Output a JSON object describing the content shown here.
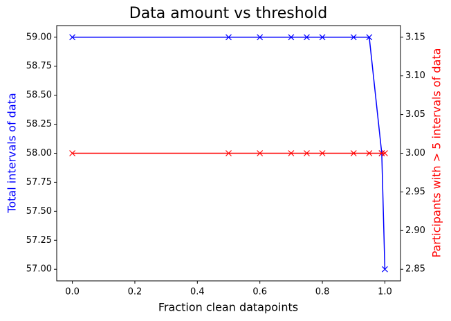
{
  "chart_data": {
    "type": "line",
    "title": "Data amount vs threshold",
    "x_label": "Fraction clean datapoints",
    "y_label": "Total intervals of data",
    "y2_label": "Participants with > 5 intervals of data",
    "y_label_color": "#0000ff",
    "y2_label_color": "#ff0000",
    "x": [
      0,
      0.5,
      0.6,
      0.7,
      0.75,
      0.8,
      0.9,
      0.95,
      0.99,
      1
    ],
    "series": [
      {
        "name": "Total intervals of data",
        "color": "#0000ff",
        "marker": "x",
        "values": [
          59,
          59,
          59,
          59,
          59,
          59,
          59,
          59,
          58,
          57
        ]
      },
      {
        "name": "Participants with > 5 intervals of data",
        "color": "#ff0000",
        "marker": "x",
        "axis": "y2",
        "values": [
          3,
          3,
          3,
          3,
          3,
          3,
          3,
          3,
          3,
          3
        ]
      }
    ],
    "xlim": [
      -0.05,
      1.05
    ],
    "xticks": [
      {
        "value": 0,
        "label": "0.0"
      },
      0.2,
      0.4,
      0.6,
      0.8,
      {
        "value": 1,
        "label": "1.0"
      }
    ],
    "ylim": [
      56.9,
      59.1
    ],
    "yticks": [
      {
        "value": 57,
        "label": "57.00"
      },
      {
        "value": 57.25,
        "label": "57.25"
      },
      {
        "value": 57.5,
        "label": "57.50"
      },
      {
        "value": 57.75,
        "label": "57.75"
      },
      {
        "value": 58,
        "label": "58.00"
      },
      {
        "value": 58.25,
        "label": "58.25"
      },
      {
        "value": 58.5,
        "label": "58.50"
      },
      {
        "value": 58.75,
        "label": "58.75"
      },
      {
        "value": 59,
        "label": "59.00"
      }
    ],
    "y2lim": [
      2.835,
      3.165
    ],
    "y2ticks": [
      2.85,
      {
        "value": 2.9,
        "label": "2.90"
      },
      2.95,
      {
        "value": 3,
        "label": "3.00"
      },
      3.05,
      {
        "value": 3.1,
        "label": "3.10"
      },
      3.15
    ],
    "grid": false
  }
}
